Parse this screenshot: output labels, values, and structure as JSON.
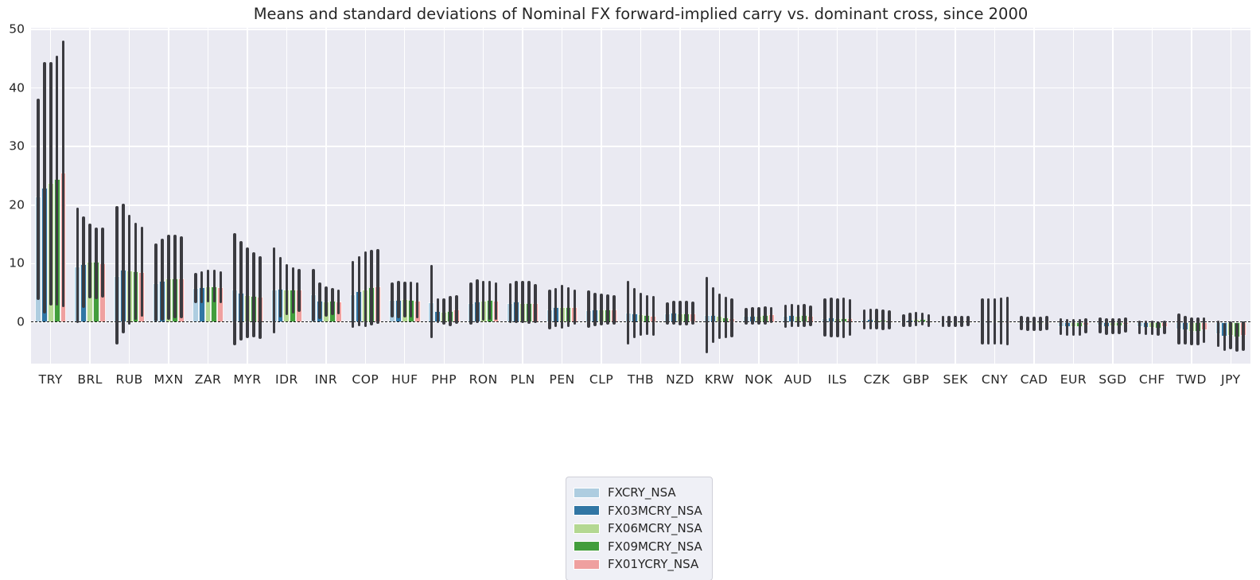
{
  "title": "Means and standard deviations of Nominal FX forward-implied carry vs. dominant cross, since 2000",
  "legend": {
    "entries": [
      "FXCRY_NSA",
      "FX03MCRY_NSA",
      "FX06MCRY_NSA",
      "FX09MCRY_NSA",
      "FX01YCRY_NSA"
    ],
    "position": "bottom-center"
  },
  "style": {
    "plot_background": "#eaeaf2",
    "gridline_color": "#ffffff",
    "error_bar_color": "#3b3b40",
    "zero_line_color": "#111111",
    "text_color": "#262626"
  },
  "chart_data": {
    "type": "bar",
    "title": "Means and standard deviations of Nominal FX forward-implied carry vs. dominant cross, since 2000",
    "xlabel": "",
    "ylabel": "",
    "ylim": [
      -7.1,
      50.3
    ],
    "y_ticks": [
      0,
      10,
      20,
      30,
      40,
      50
    ],
    "grid": true,
    "zero_line_dashed": true,
    "legend_position": "bottom-center",
    "categories": [
      "TRY",
      "BRL",
      "RUB",
      "MXN",
      "ZAR",
      "MYR",
      "IDR",
      "INR",
      "COP",
      "HUF",
      "PHP",
      "RON",
      "PLN",
      "PEN",
      "CLP",
      "THB",
      "NZD",
      "KRW",
      "NOK",
      "AUD",
      "ILS",
      "CZK",
      "GBP",
      "SEK",
      "CNY",
      "CAD",
      "EUR",
      "SGD",
      "CHF",
      "TWD",
      "JPY"
    ],
    "series": [
      {
        "name": "FXCRY_NSA",
        "color": "#aecde0",
        "means": [
          21.4,
          9.5,
          7.9,
          6.7,
          5.8,
          5.5,
          5.5,
          4.7,
          4.7,
          3.8,
          3.4,
          3.2,
          3.2,
          2.1,
          2.0,
          1.6,
          1.5,
          1.2,
          1.0,
          1.0,
          0.6,
          0.4,
          0.3,
          0.1,
          0.1,
          -0.2,
          -0.8,
          -0.6,
          -0.9,
          -1.2,
          -2.0
        ],
        "err_high": [
          38.2,
          19.6,
          19.8,
          13.4,
          8.4,
          15.2,
          12.8,
          9.1,
          10.4,
          6.8,
          9.7,
          6.8,
          6.7,
          5.5,
          5.4,
          7.0,
          3.4,
          7.7,
          2.4,
          2.9,
          4.0,
          2.2,
          1.4,
          1.0,
          4.1,
          1.0,
          0.6,
          0.8,
          0.3,
          1.5,
          0.3
        ],
        "err_low": [
          3.8,
          -0.1,
          -3.9,
          0.1,
          3.2,
          -4.0,
          -1.9,
          0.1,
          -1.0,
          0.8,
          -2.8,
          -0.4,
          -0.2,
          -1.2,
          -1.0,
          -3.8,
          -0.5,
          -5.3,
          -0.5,
          -1.0,
          -2.5,
          -1.2,
          -0.8,
          -0.8,
          -3.9,
          -1.4,
          -2.2,
          -2.0,
          -2.1,
          -3.9,
          -4.3
        ]
      },
      {
        "name": "FX03MCRY_NSA",
        "color": "#3176a4",
        "means": [
          23.0,
          9.9,
          9.0,
          7.0,
          6.0,
          5.0,
          5.7,
          3.7,
          5.3,
          3.8,
          1.9,
          3.5,
          3.5,
          2.5,
          2.2,
          1.5,
          1.6,
          1.2,
          1.1,
          1.2,
          0.8,
          0.5,
          0.4,
          0.1,
          0.1,
          -0.3,
          -0.9,
          -0.8,
          -1.0,
          -1.4,
          -2.5
        ],
        "err_high": [
          44.5,
          18.0,
          20.3,
          14.3,
          8.7,
          13.9,
          11.1,
          6.8,
          11.3,
          7.0,
          4.0,
          7.3,
          7.1,
          5.8,
          5.0,
          5.8,
          3.7,
          5.9,
          2.6,
          3.1,
          4.2,
          2.3,
          1.6,
          1.0,
          4.0,
          0.9,
          0.5,
          0.6,
          0.2,
          1.0,
          -0.1
        ],
        "err_low": [
          1.5,
          2.4,
          -1.9,
          0.3,
          3.3,
          -3.2,
          0.8,
          0.5,
          -0.7,
          0.7,
          -0.2,
          -0.2,
          -0.1,
          -0.9,
          -0.7,
          -2.8,
          -0.5,
          -3.6,
          -0.4,
          -0.9,
          -2.6,
          -1.2,
          -0.8,
          -0.8,
          -3.8,
          -1.5,
          -2.3,
          -2.2,
          -2.2,
          -3.8,
          -4.9
        ]
      },
      {
        "name": "FX06MCRY_NSA",
        "color": "#b4d892",
        "means": [
          23.8,
          10.3,
          8.8,
          7.5,
          6.1,
          4.6,
          5.6,
          3.5,
          5.6,
          3.9,
          1.8,
          3.7,
          3.3,
          2.6,
          2.1,
          1.3,
          1.5,
          1.0,
          1.1,
          1.1,
          0.7,
          0.4,
          0.5,
          0.1,
          0.2,
          -0.3,
          -0.9,
          -0.7,
          -1.0,
          -1.6,
          -2.3
        ],
        "err_high": [
          44.4,
          16.8,
          18.3,
          15.0,
          8.9,
          12.8,
          9.9,
          6.1,
          12.1,
          6.9,
          4.1,
          7.1,
          7.0,
          6.3,
          4.9,
          5.0,
          3.7,
          4.9,
          2.6,
          3.0,
          4.1,
          2.3,
          1.7,
          1.0,
          4.1,
          0.9,
          0.5,
          0.7,
          0.2,
          0.8,
          0.1
        ],
        "err_low": [
          2.8,
          4.0,
          -0.5,
          0.4,
          3.4,
          -2.7,
          1.2,
          0.9,
          -0.8,
          0.8,
          -0.5,
          0.2,
          -0.2,
          -1.1,
          -0.6,
          -2.4,
          -0.6,
          -2.9,
          -0.4,
          -0.9,
          -2.6,
          -1.3,
          -0.7,
          -0.8,
          -3.8,
          -1.5,
          -2.3,
          -2.1,
          -2.2,
          -4.0,
          -4.7
        ]
      },
      {
        "name": "FX09MCRY_NSA",
        "color": "#429d3c",
        "means": [
          24.5,
          10.3,
          8.7,
          7.5,
          6.1,
          4.5,
          5.6,
          3.6,
          5.9,
          3.8,
          1.9,
          3.8,
          3.3,
          2.6,
          2.2,
          1.2,
          1.5,
          0.8,
          1.2,
          1.2,
          0.6,
          0.4,
          0.5,
          0.1,
          0.2,
          -0.3,
          -0.9,
          -0.7,
          -1.1,
          -1.6,
          -2.6
        ],
        "err_high": [
          45.6,
          16.1,
          17.0,
          14.9,
          8.9,
          11.9,
          9.4,
          5.8,
          12.4,
          6.9,
          4.4,
          7.1,
          7.1,
          5.9,
          4.7,
          4.6,
          3.6,
          4.3,
          2.7,
          3.1,
          4.2,
          2.2,
          1.6,
          1.0,
          4.2,
          0.9,
          0.5,
          0.7,
          0.1,
          0.8,
          -0.1
        ],
        "err_low": [
          2.8,
          3.9,
          0.4,
          0.6,
          3.4,
          -2.6,
          1.5,
          1.2,
          -0.6,
          0.8,
          -0.7,
          0.4,
          -0.3,
          -0.8,
          -0.4,
          -2.2,
          -0.6,
          -2.7,
          -0.4,
          -0.9,
          -2.7,
          -1.4,
          -0.6,
          -0.8,
          -3.9,
          -1.5,
          -2.3,
          -2.1,
          -2.3,
          -4.0,
          -5.1
        ]
      },
      {
        "name": "FX01YCRY_NSA",
        "color": "#efa09f",
        "means": [
          25.6,
          10.1,
          8.5,
          7.5,
          6.0,
          4.3,
          5.5,
          3.5,
          6.1,
          3.7,
          2.2,
          3.6,
          3.2,
          2.6,
          2.1,
          1.1,
          1.5,
          0.7,
          1.3,
          1.1,
          0.7,
          0.3,
          0.3,
          0.2,
          0.1,
          -0.2,
          -0.6,
          -0.5,
          -0.9,
          -1.4,
          -2.4
        ],
        "err_high": [
          48.1,
          16.1,
          16.3,
          14.7,
          8.7,
          11.3,
          9.1,
          5.5,
          12.5,
          6.8,
          4.6,
          6.8,
          6.5,
          5.6,
          4.6,
          4.4,
          3.5,
          4.0,
          2.5,
          2.8,
          3.9,
          2.0,
          1.4,
          1.1,
          4.3,
          1.0,
          0.7,
          0.8,
          0.2,
          0.8,
          0.1
        ],
        "err_low": [
          2.5,
          4.2,
          0.9,
          0.7,
          3.3,
          -2.9,
          1.7,
          1.4,
          -0.3,
          0.7,
          -0.3,
          0.4,
          -0.1,
          -0.5,
          -0.4,
          -2.3,
          -0.5,
          -2.6,
          -0.2,
          -0.7,
          -2.3,
          -1.2,
          -0.8,
          -0.7,
          -4.0,
          -1.4,
          -1.9,
          -1.8,
          -2.0,
          -3.6,
          -4.9
        ]
      }
    ]
  }
}
